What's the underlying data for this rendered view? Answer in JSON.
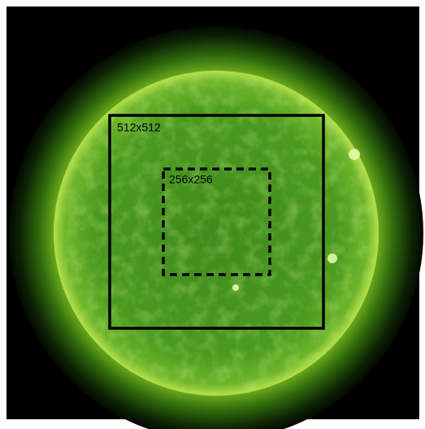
{
  "annotations": [
    {
      "label": "512x512"
    },
    {
      "label": "256x256"
    }
  ]
}
